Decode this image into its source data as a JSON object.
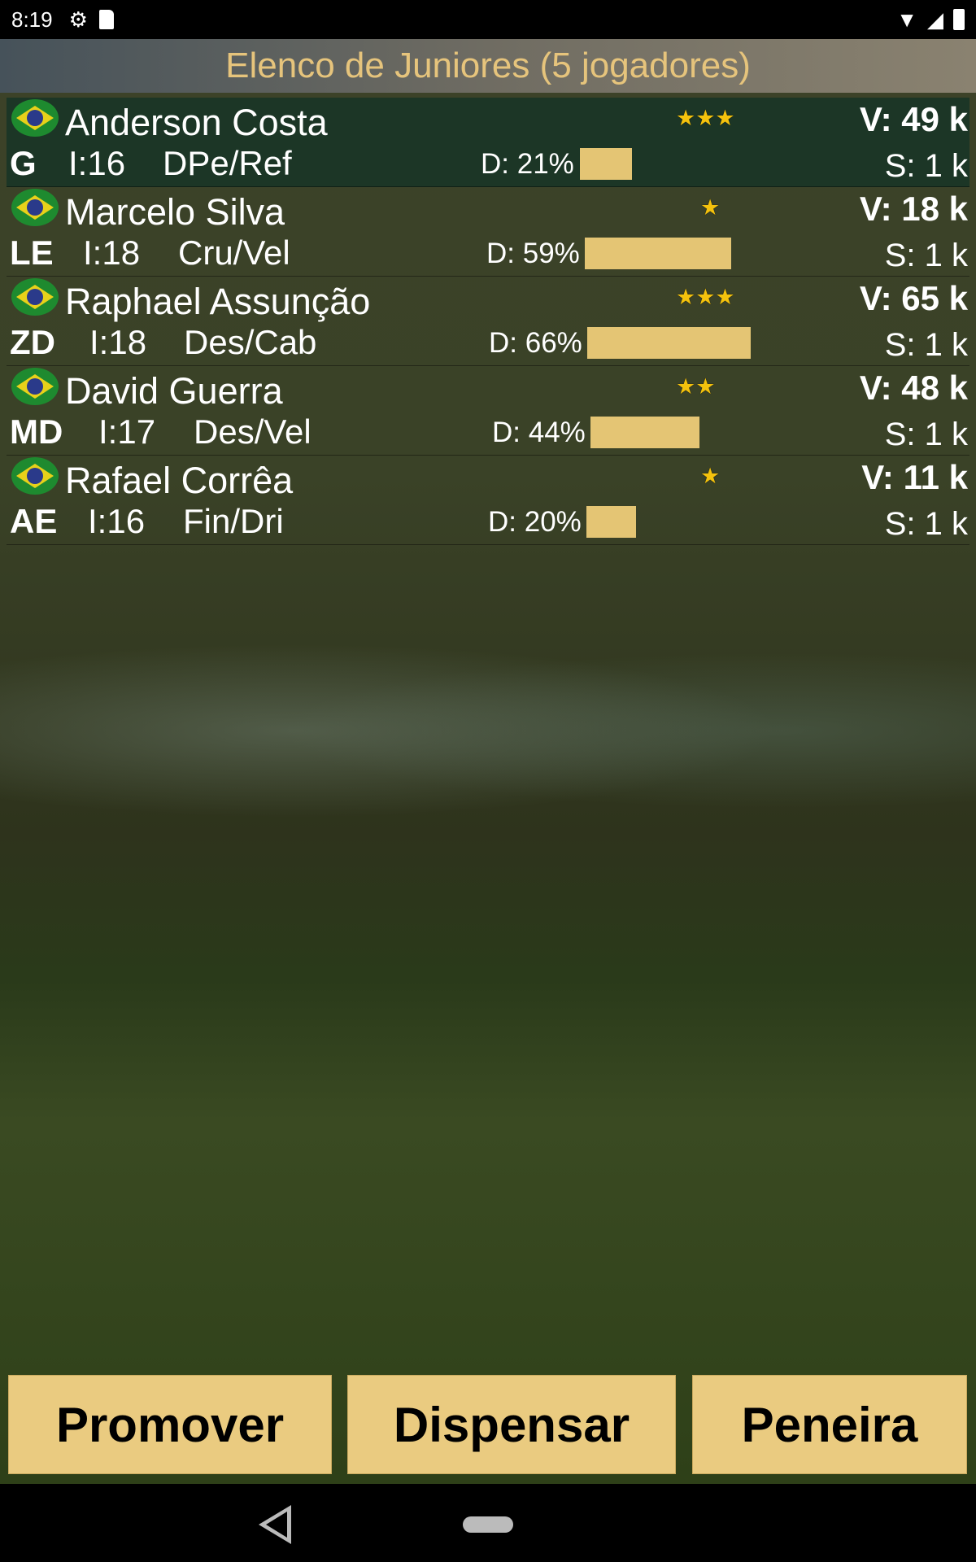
{
  "status_bar": {
    "time": "8:19"
  },
  "title": "Elenco de Juniores (5 jogadores)",
  "players": [
    {
      "name": "Anderson Costa",
      "position": "G",
      "age": "I:16",
      "skills": "DPe/Ref",
      "development_label": "D: 21%",
      "development": 21,
      "stars": "★★★",
      "star_count": 3,
      "value": "V: 49 k",
      "salary": "S: 1 k",
      "selected": true
    },
    {
      "name": "Marcelo Silva",
      "position": "LE",
      "age": "I:18",
      "skills": "Cru/Vel",
      "development_label": "D: 59%",
      "development": 59,
      "stars": "★",
      "star_count": 1,
      "value": "V: 18 k",
      "salary": "S: 1 k"
    },
    {
      "name": "Raphael Assunção",
      "position": "ZD",
      "age": "I:18",
      "skills": "Des/Cab",
      "development_label": "D: 66%",
      "development": 66,
      "stars": "★★★",
      "star_count": 3,
      "value": "V: 65 k",
      "salary": "S: 1 k"
    },
    {
      "name": "David Guerra",
      "position": "MD",
      "age": "I:17",
      "skills": "Des/Vel",
      "development_label": "D: 44%",
      "development": 44,
      "stars": "★★",
      "star_count": 2,
      "value": "V: 48 k",
      "salary": "S: 1 k"
    },
    {
      "name": "Rafael Corrêa",
      "position": "AE",
      "age": "I:16",
      "skills": "Fin/Dri",
      "development_label": "D: 20%",
      "development": 20,
      "stars": "★",
      "star_count": 1,
      "value": "V: 11 k",
      "salary": "S: 1 k"
    }
  ],
  "buttons": {
    "promote": "Promover",
    "dismiss": "Dispensar",
    "scout": "Peneira"
  },
  "colors": {
    "accent": "#e4c574",
    "title_text": "#e6c47c",
    "selected_row": "#1c3626",
    "stars": "#f4c20d"
  }
}
